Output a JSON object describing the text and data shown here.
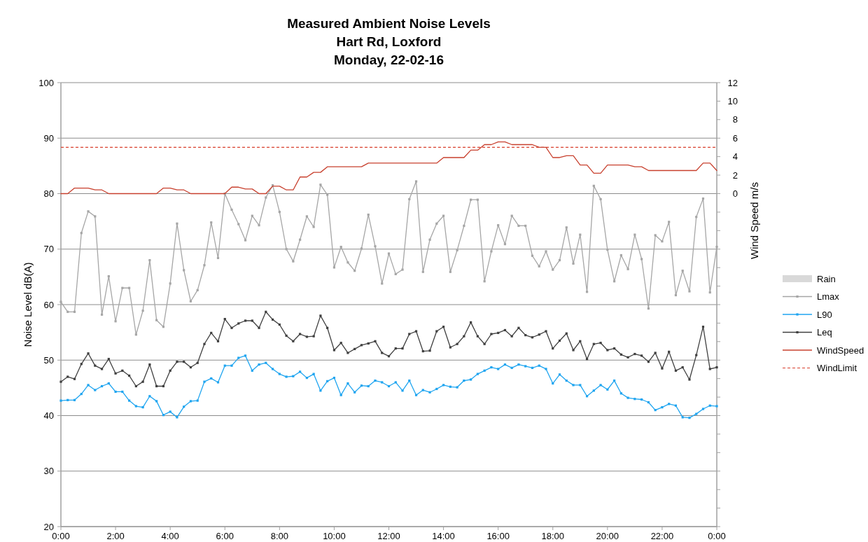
{
  "chart_data": {
    "type": "line",
    "title": "Measured Ambient Noise Levels\nHart Rd, Loxford\nMonday, 22-02-16",
    "ylabel": "Noise Level dB(A)",
    "y2label": "Wind Speed m/s",
    "x": [
      0,
      0.25,
      0.5,
      0.75,
      1,
      1.25,
      1.5,
      1.75,
      2,
      2.25,
      2.5,
      2.75,
      3,
      3.25,
      3.5,
      3.75,
      4,
      4.25,
      4.5,
      4.75,
      5,
      5.25,
      5.5,
      5.75,
      6,
      6.25,
      6.5,
      6.75,
      7,
      7.25,
      7.5,
      7.75,
      8,
      8.25,
      8.5,
      8.75,
      9,
      9.25,
      9.5,
      9.75,
      10,
      10.25,
      10.5,
      10.75,
      11,
      11.25,
      11.5,
      11.75,
      12,
      12.25,
      12.5,
      12.75,
      13,
      13.25,
      13.5,
      13.75,
      14,
      14.25,
      14.5,
      14.75,
      15,
      15.25,
      15.5,
      15.75,
      16,
      16.25,
      16.5,
      16.75,
      17,
      17.25,
      17.5,
      17.75,
      18,
      18.25,
      18.5,
      18.75,
      19,
      19.25,
      19.5,
      19.75,
      20,
      20.25,
      20.5,
      20.75,
      21,
      21.25,
      21.5,
      21.75,
      22,
      22.25,
      22.5,
      22.75,
      23,
      23.25,
      23.5,
      23.75,
      24
    ],
    "xlim": [
      0,
      24
    ],
    "xticks": [
      {
        "value": 0,
        "label": "0:00"
      },
      {
        "value": 2,
        "label": "2:00"
      },
      {
        "value": 4,
        "label": "4:00"
      },
      {
        "value": 6,
        "label": "6:00"
      },
      {
        "value": 8,
        "label": "8:00"
      },
      {
        "value": 10,
        "label": "10:00"
      },
      {
        "value": 12,
        "label": "12:00"
      },
      {
        "value": 14,
        "label": "14:00"
      },
      {
        "value": 16,
        "label": "16:00"
      },
      {
        "value": 18,
        "label": "18:00"
      },
      {
        "value": 20,
        "label": "20:00"
      },
      {
        "value": 22,
        "label": "22:00"
      },
      {
        "value": 24,
        "label": "0:00"
      }
    ],
    "ylim": [
      20,
      100
    ],
    "yticks": [
      20,
      30,
      40,
      50,
      60,
      70,
      80,
      90,
      100
    ],
    "y2lim": [
      -36,
      12
    ],
    "y2ticks": [
      {
        "value": -36,
        "label": null
      },
      {
        "value": -34,
        "label": null
      },
      {
        "value": -32,
        "label": null
      },
      {
        "value": -30,
        "label": null
      },
      {
        "value": -28,
        "label": null
      },
      {
        "value": -26,
        "label": null
      },
      {
        "value": -24,
        "label": null
      },
      {
        "value": -22,
        "label": null
      },
      {
        "value": -20,
        "label": null
      },
      {
        "value": -18,
        "label": null
      },
      {
        "value": -16,
        "label": null
      },
      {
        "value": -14,
        "label": null
      },
      {
        "value": -12,
        "label": null
      },
      {
        "value": -10,
        "label": null
      },
      {
        "value": -8,
        "label": null
      },
      {
        "value": -6,
        "label": null
      },
      {
        "value": -4,
        "label": null
      },
      {
        "value": -2,
        "label": null
      },
      0,
      2,
      4,
      6,
      8,
      10,
      12
    ],
    "grid": "y",
    "legend": "right",
    "marker": "square",
    "series": [
      {
        "name": "Rain",
        "type": "bar",
        "axis": "y2",
        "color": "#d9d9d9",
        "values": [
          null,
          null,
          null,
          null,
          null,
          null,
          null,
          null,
          null,
          null,
          null,
          null,
          null,
          null,
          null,
          null,
          null,
          null,
          null,
          null,
          null,
          null,
          null,
          null,
          null,
          null,
          null,
          null,
          null,
          null,
          null,
          null,
          null,
          null,
          null,
          null,
          null,
          null,
          null,
          null,
          null,
          null,
          null,
          null,
          null,
          null,
          null,
          null,
          null,
          null,
          null,
          null,
          null,
          null,
          null,
          null,
          null,
          null,
          null,
          null,
          null,
          null,
          null,
          null,
          null,
          null,
          null,
          null,
          null,
          null,
          null,
          null,
          null,
          null,
          null,
          null,
          null,
          null,
          null,
          null,
          null,
          null,
          null,
          null,
          null,
          null,
          null,
          null,
          null,
          null,
          null,
          null,
          null,
          null,
          null,
          null,
          null
        ]
      },
      {
        "name": "Lmax",
        "color": "#a6a6a6",
        "values": [
          60.5,
          58.7,
          58.7,
          72.9,
          76.8,
          75.9,
          58.2,
          65.1,
          57.0,
          63.0,
          63.0,
          54.6,
          58.9,
          68.0,
          57.2,
          56.0,
          63.8,
          74.6,
          66.2,
          60.6,
          62.6,
          67.1,
          74.8,
          68.4,
          80.0,
          77.1,
          74.5,
          71.6,
          76.0,
          74.3,
          79.3,
          81.5,
          76.7,
          70.0,
          67.8,
          71.7,
          75.9,
          74.0,
          81.6,
          79.8,
          66.7,
          70.4,
          67.6,
          66.1,
          70.1,
          76.2,
          70.5,
          63.8,
          69.2,
          65.5,
          66.3,
          79.0,
          82.2,
          65.9,
          71.7,
          74.6,
          76.0,
          65.9,
          69.8,
          74.2,
          78.9,
          78.9,
          64.2,
          69.6,
          74.3,
          70.9,
          76.0,
          74.2,
          74.2,
          68.8,
          66.9,
          69.6,
          66.3,
          68.0,
          73.9,
          67.4,
          72.6,
          62.3,
          81.4,
          79.0,
          69.9,
          64.2,
          68.9,
          66.4,
          72.6,
          68.2,
          59.3,
          72.5,
          71.4,
          74.9,
          61.7,
          66.1,
          62.4,
          75.8,
          79.1,
          62.2,
          70.4
        ]
      },
      {
        "name": "L90",
        "color": "#1fa5f0",
        "values": [
          42.7,
          42.8,
          42.8,
          43.9,
          45.5,
          44.6,
          45.3,
          45.8,
          44.3,
          44.3,
          42.7,
          41.7,
          41.5,
          43.5,
          42.6,
          40.1,
          40.7,
          39.7,
          41.6,
          42.6,
          42.7,
          46.1,
          46.7,
          46.0,
          49.0,
          49.0,
          50.4,
          50.8,
          48.1,
          49.2,
          49.5,
          48.4,
          47.5,
          47.0,
          47.1,
          47.9,
          46.8,
          47.5,
          44.5,
          46.2,
          46.8,
          43.7,
          45.8,
          44.2,
          45.4,
          45.3,
          46.3,
          46.0,
          45.3,
          46.0,
          44.5,
          46.3,
          43.7,
          44.6,
          44.2,
          44.8,
          45.5,
          45.2,
          45.1,
          46.3,
          46.5,
          47.5,
          48.1,
          48.7,
          48.4,
          49.2,
          48.6,
          49.2,
          48.9,
          48.6,
          49.0,
          48.4,
          45.8,
          47.4,
          46.3,
          45.5,
          45.5,
          43.5,
          44.5,
          45.5,
          44.7,
          46.3,
          44.0,
          43.2,
          43.0,
          42.9,
          42.4,
          41.0,
          41.5,
          42.1,
          41.8,
          39.7,
          39.6,
          40.3,
          41.2,
          41.8,
          41.7
        ]
      },
      {
        "name": "Leq",
        "color": "#404040",
        "values": [
          46.1,
          47.0,
          46.6,
          49.3,
          51.2,
          49.0,
          48.4,
          50.2,
          47.6,
          48.1,
          47.2,
          45.3,
          46.1,
          49.2,
          45.3,
          45.3,
          48.1,
          49.7,
          49.7,
          48.7,
          49.5,
          52.9,
          54.9,
          53.4,
          57.4,
          55.8,
          56.6,
          57.1,
          57.1,
          55.8,
          58.7,
          57.3,
          56.4,
          54.4,
          53.4,
          54.7,
          54.2,
          54.3,
          58.0,
          55.8,
          51.8,
          53.1,
          51.3,
          52.0,
          52.7,
          53.0,
          53.4,
          51.3,
          50.7,
          52.1,
          52.1,
          54.7,
          55.2,
          51.6,
          51.7,
          55.2,
          56.0,
          52.3,
          52.9,
          54.3,
          56.8,
          54.3,
          52.9,
          54.7,
          54.9,
          55.4,
          54.3,
          55.8,
          54.5,
          54.1,
          54.6,
          55.2,
          52.1,
          53.5,
          54.8,
          51.8,
          53.4,
          50.2,
          52.9,
          53.1,
          51.8,
          52.1,
          51.0,
          50.5,
          51.1,
          50.8,
          49.7,
          51.3,
          48.5,
          51.5,
          48.1,
          48.7,
          46.5,
          50.9,
          56.0,
          48.4,
          48.7
        ]
      },
      {
        "name": "WindSpeed",
        "axis": "y2",
        "marker": "none",
        "color": "#c8402e",
        "values": [
          0,
          0,
          0.6,
          0.6,
          0.6,
          0.4,
          0.4,
          0,
          0,
          0,
          0,
          0,
          0,
          0,
          0,
          0.6,
          0.6,
          0.4,
          0.4,
          0,
          0,
          0,
          0,
          0,
          0,
          0.7,
          0.7,
          0.5,
          0.5,
          0,
          0,
          0.8,
          0.8,
          0.4,
          0.4,
          1.8,
          1.8,
          2.3,
          2.3,
          2.9,
          2.9,
          2.9,
          2.9,
          2.9,
          2.9,
          3.3,
          3.3,
          3.3,
          3.3,
          3.3,
          3.3,
          3.3,
          3.3,
          3.3,
          3.3,
          3.3,
          3.9,
          3.9,
          3.9,
          3.9,
          4.7,
          4.7,
          5.3,
          5.3,
          5.6,
          5.6,
          5.3,
          5.3,
          5.3,
          5.3,
          5.0,
          5.0,
          3.9,
          3.9,
          4.1,
          4.1,
          3.1,
          3.1,
          2.2,
          2.2,
          3.1,
          3.1,
          3.1,
          3.1,
          2.9,
          2.9,
          2.5,
          2.5,
          2.5,
          2.5,
          2.5,
          2.5,
          2.5,
          2.5,
          3.3,
          3.3,
          2.5
        ]
      }
    ],
    "ref_lines": [
      {
        "axis": "y2",
        "value": 5,
        "label": "WindLimit",
        "color": "#d9402e",
        "line_style": "dashed"
      }
    ]
  }
}
